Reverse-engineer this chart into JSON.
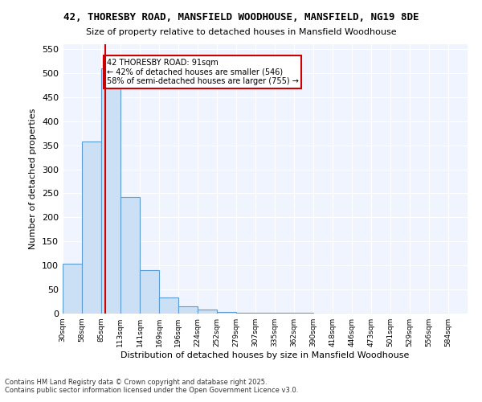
{
  "title": "42, THORESBY ROAD, MANSFIELD WOODHOUSE, MANSFIELD, NG19 8DE",
  "subtitle": "Size of property relative to detached houses in Mansfield Woodhouse",
  "xlabel": "Distribution of detached houses by size in Mansfield Woodhouse",
  "ylabel": "Number of detached properties",
  "bar_edges": [
    30,
    58,
    85,
    113,
    141,
    169,
    196,
    224,
    252,
    279,
    307,
    335,
    362,
    390,
    418,
    446,
    473,
    501,
    529,
    556,
    584
  ],
  "bar_heights": [
    103,
    357,
    510,
    243,
    90,
    33,
    15,
    8,
    3,
    2,
    1,
    1,
    1,
    0,
    0,
    0,
    0,
    0,
    0,
    0
  ],
  "bar_color": "#cce0f5",
  "bar_edge_color": "#5b9bd5",
  "vline_x": 91,
  "vline_color": "#cc0000",
  "annotation_text": "42 THORESBY ROAD: 91sqm\n← 42% of detached houses are smaller (546)\n58% of semi-detached houses are larger (755) →",
  "annotation_box_color": "#cc0000",
  "annotation_text_color": "black",
  "ylim": [
    0,
    560
  ],
  "yticks": [
    0,
    50,
    100,
    150,
    200,
    250,
    300,
    350,
    400,
    450,
    500,
    550
  ],
  "background_color": "#f0f4ff",
  "footer_line1": "Contains HM Land Registry data © Crown copyright and database right 2025.",
  "footer_line2": "Contains public sector information licensed under the Open Government Licence v3.0."
}
